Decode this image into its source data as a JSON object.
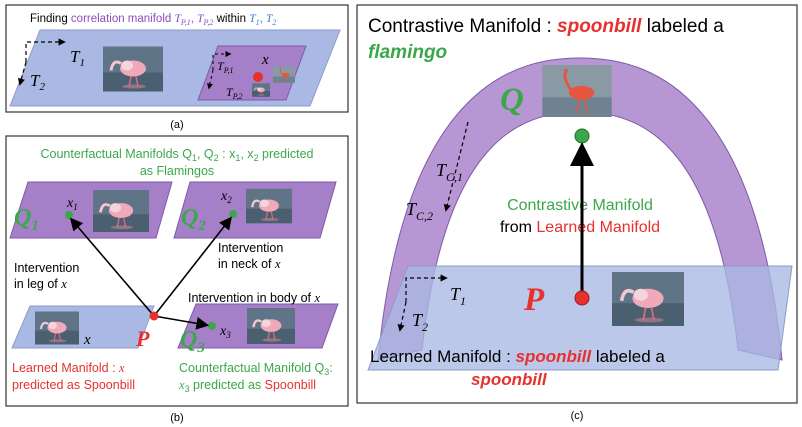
{
  "colors": {
    "blue_plane": "#a9b9e3",
    "purple_plane": "#a67fc9",
    "red": "#e6312e",
    "green": "#3aa84a",
    "purple_text": "#8a4fc0",
    "blue_text": "#3a7ac6",
    "border": "#333333"
  },
  "icons": [
    "flamingo-photo",
    "spoonbill-photo"
  ],
  "panel_a": {
    "title_prefix": "Finding ",
    "title_highlight": "correlation manifold ",
    "title_tp1": "T",
    "title_tp1_sub": "P,1",
    "title_comma": ", ",
    "title_tp2": "T",
    "title_tp2_sub": "P,2",
    "title_within": " within ",
    "title_t1": "T",
    "title_t1_sub": "1",
    "title_t2": "T",
    "title_t2_sub": "2",
    "axis_t1": "T",
    "axis_t1_sub": "1",
    "axis_t2": "T",
    "axis_t2_sub": "2",
    "axis_tp1": "T",
    "axis_tp1_sub": "P,1",
    "axis_tp2": "T",
    "axis_tp2_sub": "P,2",
    "point_x": "x",
    "caption": "(a)"
  },
  "panel_b": {
    "cf_title_line1": "Counterfactual Manifolds Q",
    "cf_title_line1_b": ", Q",
    "cf_title_line1_c": " : x",
    "cf_title_line1_d": ", x",
    "cf_title_line1_e": " predicted",
    "cf_sub1": "1",
    "cf_sub2": "2",
    "cf_title_line2": "as Flamingos",
    "q1": "Q",
    "q1_sub": "1",
    "q2": "Q",
    "q2_sub": "2",
    "q3": "Q",
    "q3_sub": "3",
    "x1": "x",
    "x1_sub": "1",
    "x2": "x",
    "x2_sub": "2",
    "x3": "x",
    "x3_sub": "3",
    "x": "x",
    "p": "P",
    "leg_line1": "Intervention",
    "leg_line2": "in leg of ",
    "leg_x": "x",
    "neck_line1": "Intervention",
    "neck_line2": "in neck of ",
    "neck_x": "x",
    "body_text": "Intervention in body of ",
    "body_x": "x",
    "learned_line1": "Learned Manifold : ",
    "learned_x": "x",
    "learned_line2": "predicted as Spoonbill",
    "cf3_line1": "Counterfactual Manifold Q",
    "cf3_sub": "3",
    "cf3_colon": ":",
    "cf3_line2_x": "x",
    "cf3_line2_sub": "3",
    "cf3_line2_mid": " predicted as ",
    "cf3_line2_red": "Spoonbill",
    "caption": "(b)"
  },
  "panel_c": {
    "title_line1_a": "Contrastive Manifold : ",
    "title_line1_b": "spoonbill",
    "title_line1_c": " labeled a",
    "title_line2": "flamingo",
    "q": "Q",
    "p": "P",
    "tc1": "T",
    "tc1_sub": "C,1",
    "tc2": "T",
    "tc2_sub": "C,2",
    "t1": "T",
    "t1_sub": "1",
    "t2": "T",
    "t2_sub": "2",
    "contrastive_line1": "Contrastive  Manifold",
    "contrastive_line2_a": "from ",
    "contrastive_line2_b": "Learned Manifold",
    "learned_a": "Learned Manifold : ",
    "learned_b": "spoonbill",
    "learned_c": " labeled a",
    "learned_line2": "spoonbill",
    "caption": "(c)"
  }
}
